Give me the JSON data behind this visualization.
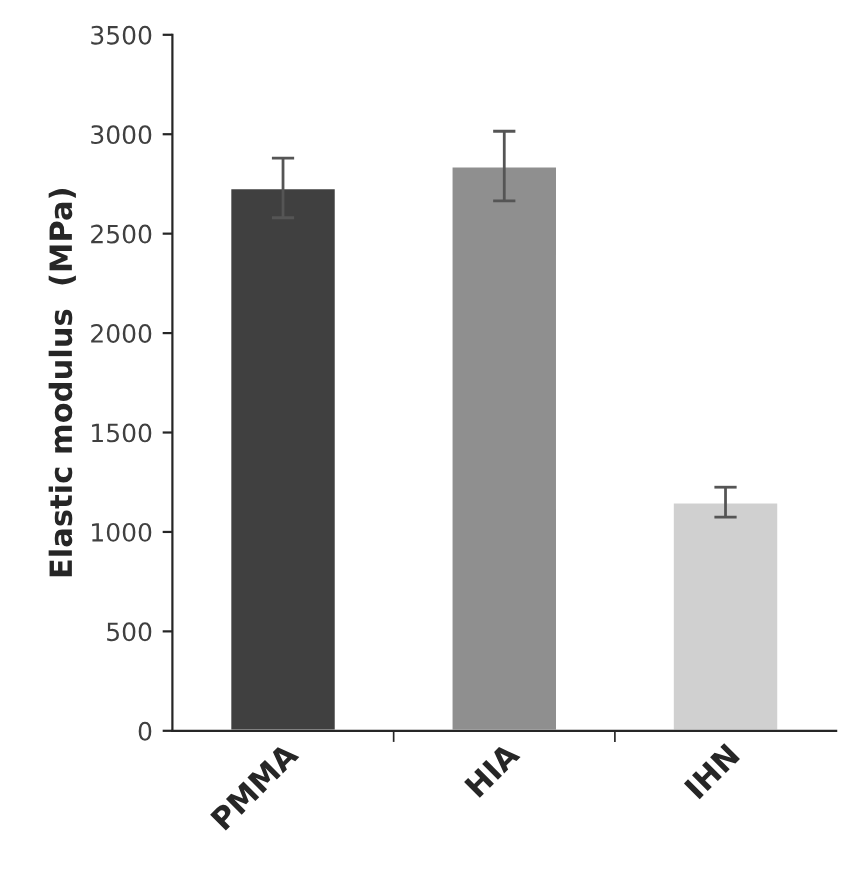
{
  "chart_data": {
    "type": "bar",
    "ylabel": "Elastic modulus  (MPa)",
    "categories": [
      "PMMA",
      "HIA",
      "IHN"
    ],
    "values": [
      2730,
      2840,
      1150
    ],
    "errors": [
      150,
      175,
      75
    ],
    "colors": [
      "#404040",
      "#8f8f8f",
      "#d0d0d0"
    ],
    "ylim": [
      0,
      3500
    ],
    "yticks": [
      0,
      500,
      1000,
      1500,
      2000,
      2500,
      3000,
      3500
    ],
    "grid": false
  }
}
